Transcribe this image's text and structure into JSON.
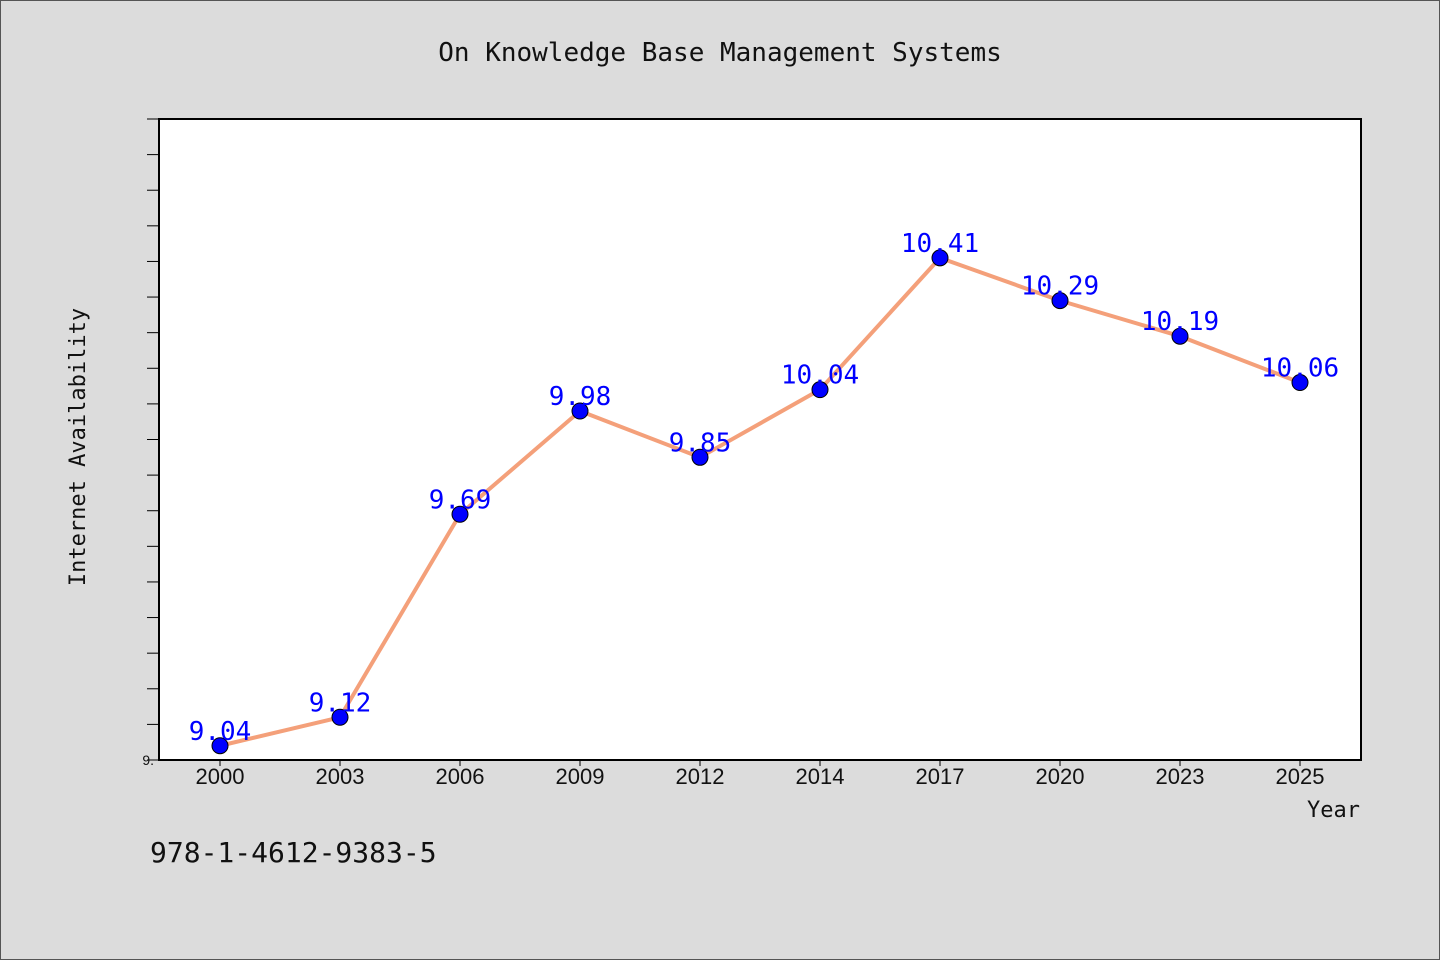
{
  "chart_data": {
    "type": "line",
    "title": "On Knowledge Base Management Systems",
    "xlabel": "Year",
    "ylabel": "Internet Availability",
    "categories": [
      "2000",
      "2003",
      "2006",
      "2009",
      "2012",
      "2014",
      "2017",
      "2020",
      "2023",
      "2025"
    ],
    "series": [
      {
        "values": [
          9.04,
          9.12,
          9.69,
          9.98,
          9.85,
          10.04,
          10.41,
          10.29,
          10.19,
          10.06
        ],
        "labels": [
          "9.04",
          "9.12",
          "9.69",
          "9.98",
          "9.85",
          "10.04",
          "10.41",
          "10.29",
          "10.19",
          "10.06"
        ]
      }
    ],
    "ylim": [
      9.0,
      10.8
    ],
    "ytick_visible_label": "9.",
    "grid": false,
    "colors": {
      "line": "#f4a07a",
      "marker": "#0000ff",
      "data_label": "#0000ff",
      "background": "#dcdcdc",
      "plot_background": "#ffffff"
    }
  },
  "footer_text": "978-1-4612-9383-5"
}
